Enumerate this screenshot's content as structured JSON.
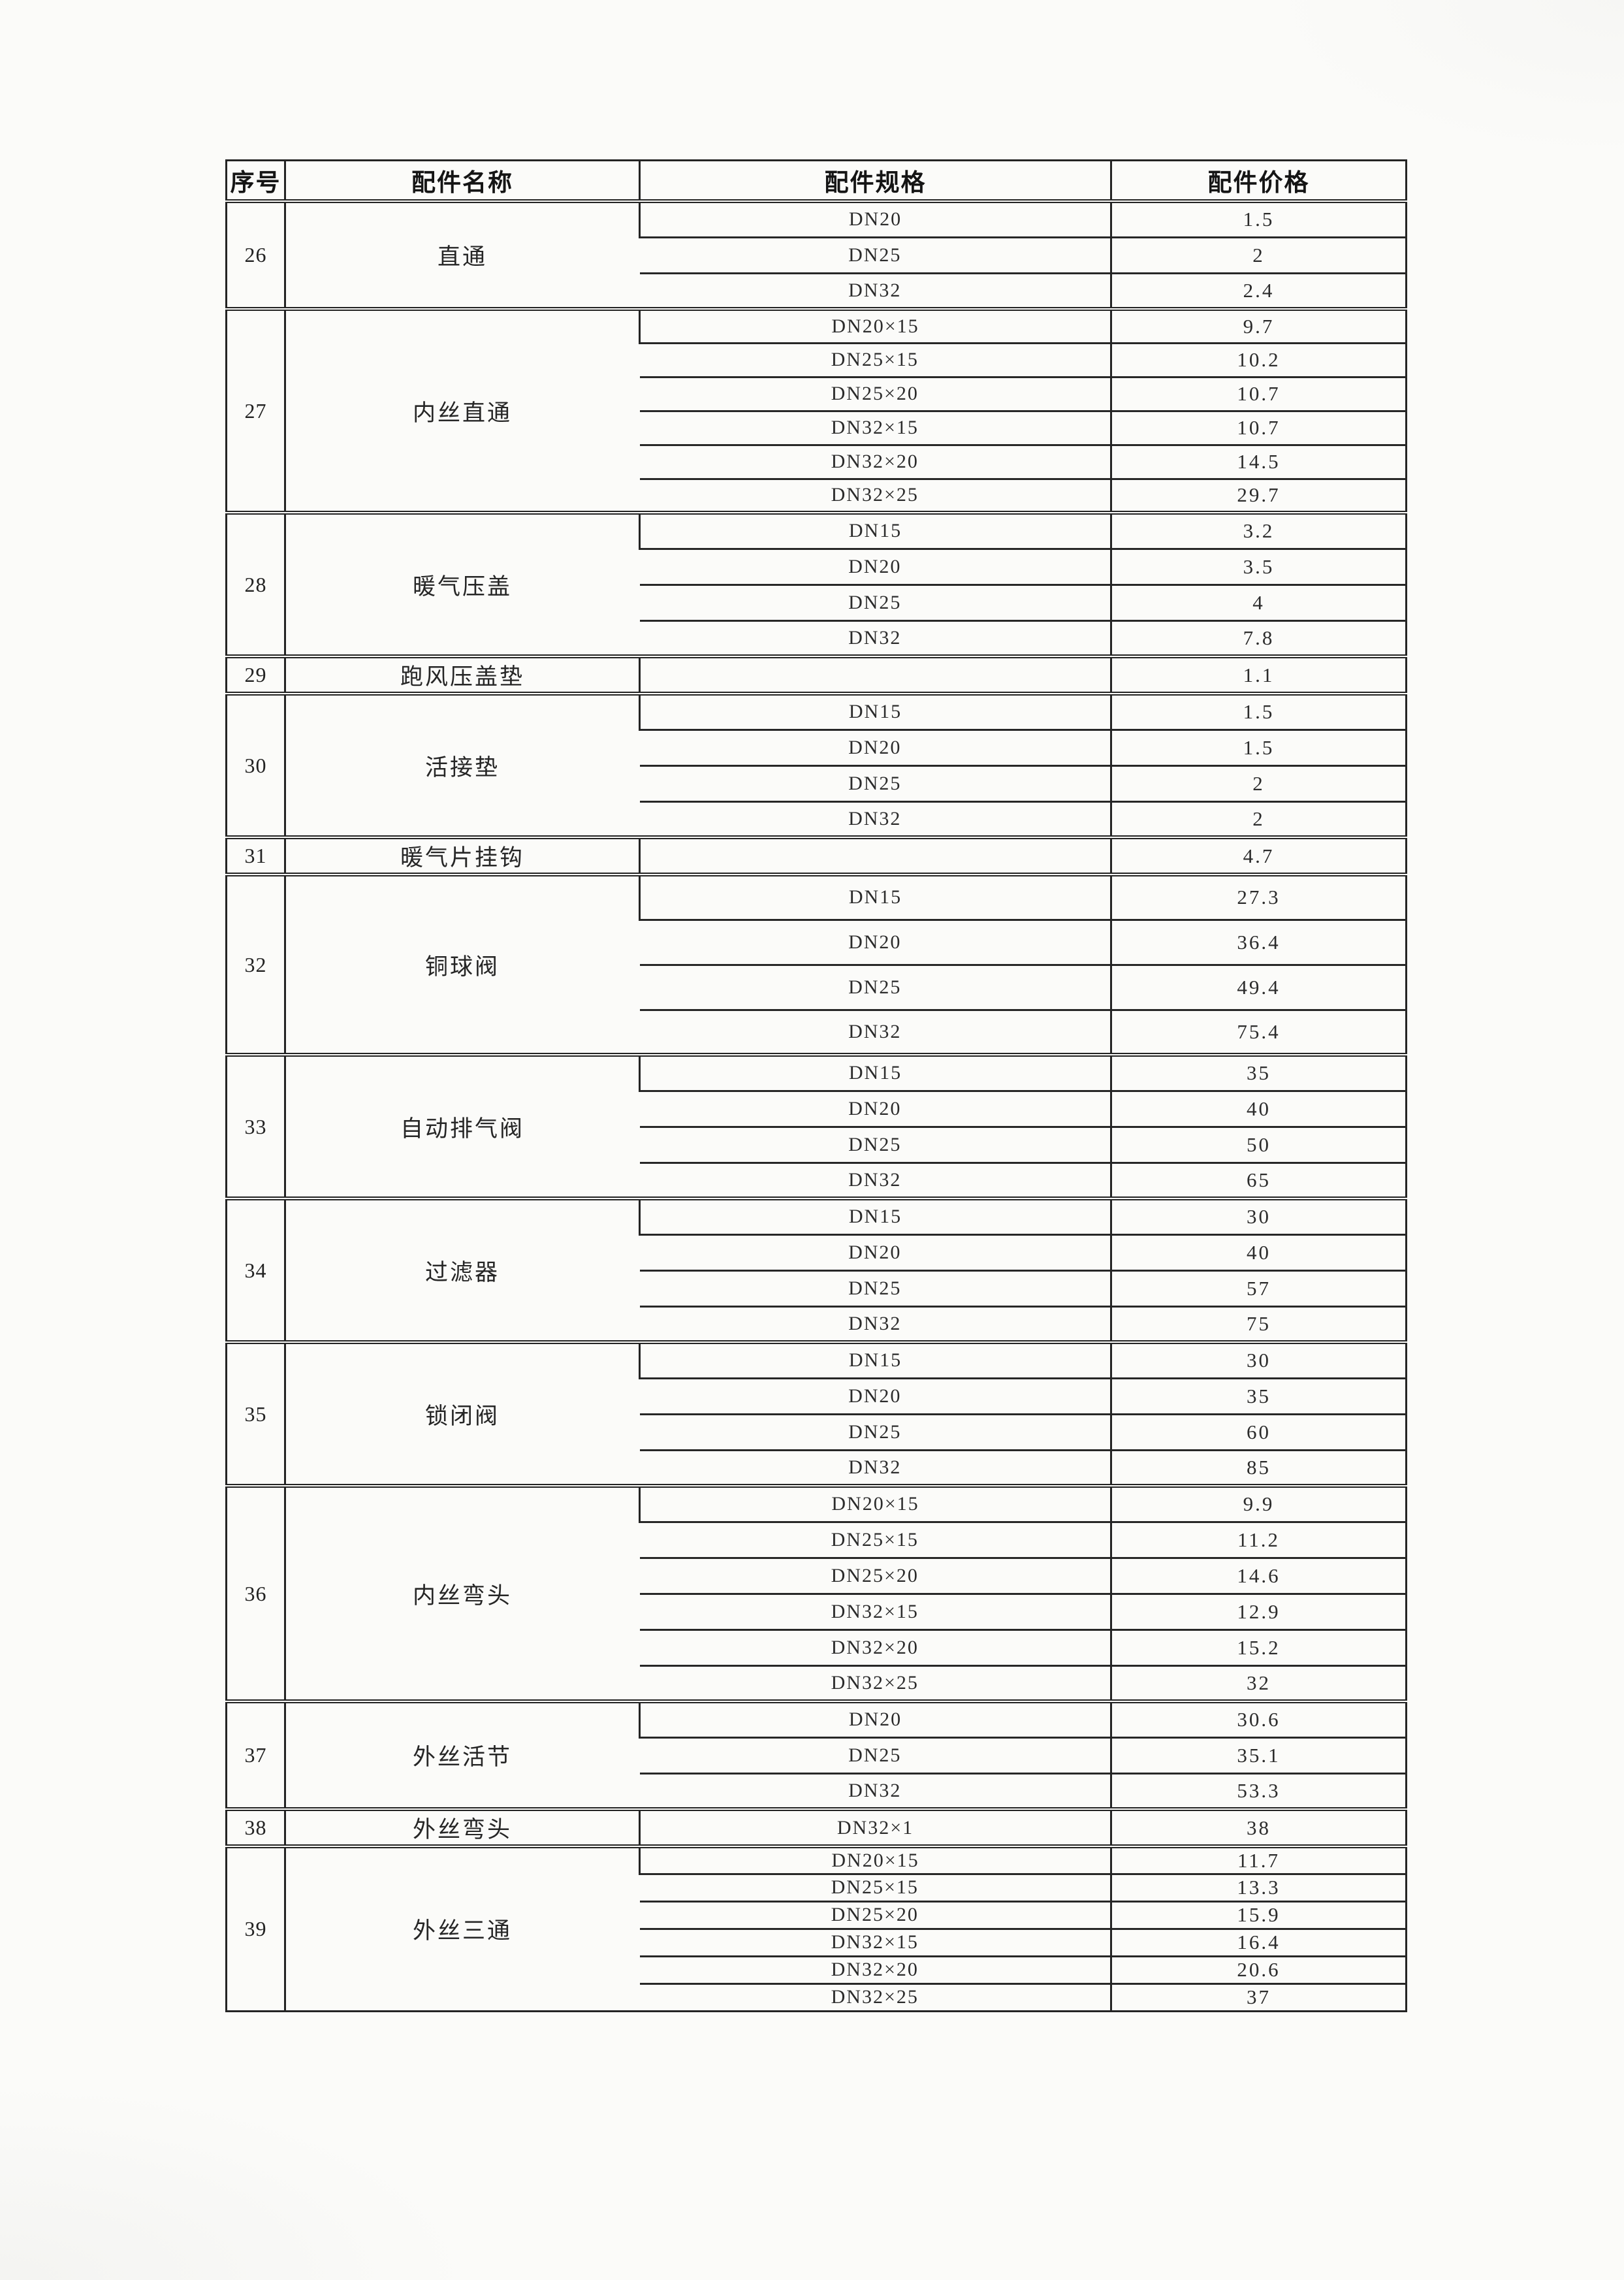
{
  "colors": {
    "background": "#fbfbf9",
    "line": "#242424",
    "text": "#1e1e1e"
  },
  "table": {
    "headers": {
      "no": "序号",
      "name": "配件名称",
      "spec": "配件规格",
      "price": "配件价格"
    },
    "groups": [
      {
        "no": "26",
        "name": "直通",
        "specs": [
          {
            "spec": "DN20",
            "price": "1.5"
          },
          {
            "spec": "DN25",
            "price": "2"
          },
          {
            "spec": "DN32",
            "price": "2.4"
          }
        ]
      },
      {
        "no": "27",
        "name": "内丝直通",
        "specs": [
          {
            "spec": "DN20×15",
            "price": "9.7"
          },
          {
            "spec": "DN25×15",
            "price": "10.2"
          },
          {
            "spec": "DN25×20",
            "price": "10.7"
          },
          {
            "spec": "DN32×15",
            "price": "10.7"
          },
          {
            "spec": "DN32×20",
            "price": "14.5"
          },
          {
            "spec": "DN32×25",
            "price": "29.7"
          }
        ]
      },
      {
        "no": "28",
        "name": "暖气压盖",
        "specs": [
          {
            "spec": "DN15",
            "price": "3.2"
          },
          {
            "spec": "DN20",
            "price": "3.5"
          },
          {
            "spec": "DN25",
            "price": "4"
          },
          {
            "spec": "DN32",
            "price": "7.8"
          }
        ]
      },
      {
        "no": "29",
        "name": "跑风压盖垫",
        "specs": [
          {
            "spec": "",
            "price": "1.1"
          }
        ]
      },
      {
        "no": "30",
        "name": "活接垫",
        "specs": [
          {
            "spec": "DN15",
            "price": "1.5"
          },
          {
            "spec": "DN20",
            "price": "1.5"
          },
          {
            "spec": "DN25",
            "price": "2"
          },
          {
            "spec": "DN32",
            "price": "2"
          }
        ]
      },
      {
        "no": "31",
        "name": "暖气片挂钩",
        "specs": [
          {
            "spec": "",
            "price": "4.7"
          }
        ]
      },
      {
        "no": "32",
        "name": "铜球阀",
        "specs": [
          {
            "spec": "DN15",
            "price": "27.3"
          },
          {
            "spec": "DN20",
            "price": "36.4"
          },
          {
            "spec": "DN25",
            "price": "49.4"
          },
          {
            "spec": "DN32",
            "price": "75.4"
          }
        ]
      },
      {
        "no": "33",
        "name": "自动排气阀",
        "specs": [
          {
            "spec": "DN15",
            "price": "35"
          },
          {
            "spec": "DN20",
            "price": "40"
          },
          {
            "spec": "DN25",
            "price": "50"
          },
          {
            "spec": "DN32",
            "price": "65"
          }
        ]
      },
      {
        "no": "34",
        "name": "过滤器",
        "specs": [
          {
            "spec": "DN15",
            "price": "30"
          },
          {
            "spec": "DN20",
            "price": "40"
          },
          {
            "spec": "DN25",
            "price": "57"
          },
          {
            "spec": "DN32",
            "price": "75"
          }
        ]
      },
      {
        "no": "35",
        "name": "锁闭阀",
        "specs": [
          {
            "spec": "DN15",
            "price": "30"
          },
          {
            "spec": "DN20",
            "price": "35"
          },
          {
            "spec": "DN25",
            "price": "60"
          },
          {
            "spec": "DN32",
            "price": "85"
          }
        ]
      },
      {
        "no": "36",
        "name": "内丝弯头",
        "specs": [
          {
            "spec": "DN20×15",
            "price": "9.9"
          },
          {
            "spec": "DN25×15",
            "price": "11.2"
          },
          {
            "spec": "DN25×20",
            "price": "14.6"
          },
          {
            "spec": "DN32×15",
            "price": "12.9"
          },
          {
            "spec": "DN32×20",
            "price": "15.2"
          },
          {
            "spec": "DN32×25",
            "price": "32"
          }
        ]
      },
      {
        "no": "37",
        "name": "外丝活节",
        "specs": [
          {
            "spec": "DN20",
            "price": "30.6"
          },
          {
            "spec": "DN25",
            "price": "35.1"
          },
          {
            "spec": "DN32",
            "price": "53.3"
          }
        ]
      },
      {
        "no": "38",
        "name": "外丝弯头",
        "specs": [
          {
            "spec": "DN32×1",
            "price": "38"
          }
        ]
      },
      {
        "no": "39",
        "name": "外丝三通",
        "specs": [
          {
            "spec": "DN20×15",
            "price": "11.7"
          },
          {
            "spec": "DN25×15",
            "price": "13.3"
          },
          {
            "spec": "DN25×20",
            "price": "15.9"
          },
          {
            "spec": "DN32×15",
            "price": "16.4"
          },
          {
            "spec": "DN32×20",
            "price": "20.6"
          },
          {
            "spec": "DN32×25",
            "price": "37"
          }
        ]
      }
    ]
  }
}
